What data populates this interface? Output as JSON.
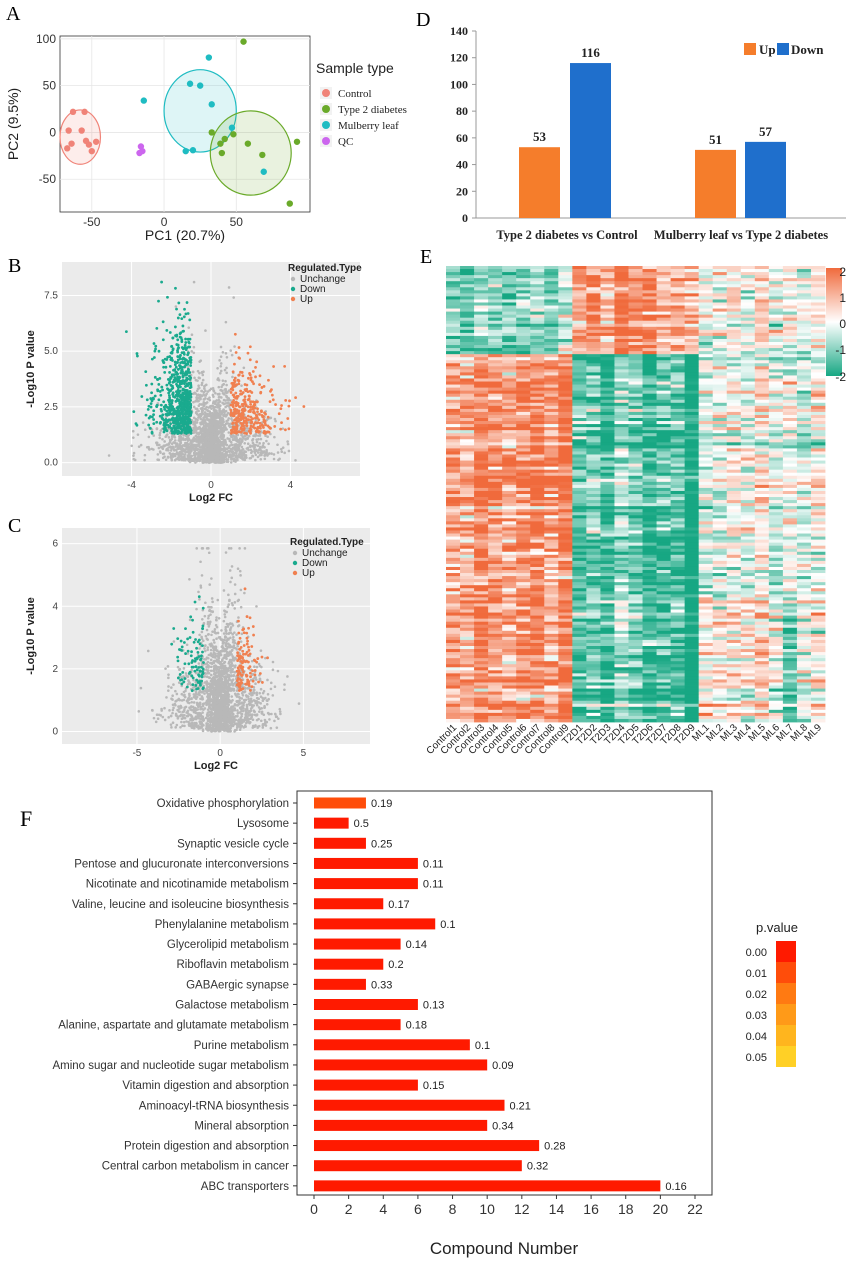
{
  "colors": {
    "control": "#f08378",
    "t2d": "#6aaa2a",
    "ml": "#1fbcc2",
    "qc": "#cc66ee",
    "up": "#f08050",
    "down": "#1aaa8e",
    "unchange": "#b8b8b8",
    "barUp": "#f57d2b",
    "barDown": "#1f6fcc",
    "heatHigh": "#f06a3c",
    "heatMid": "#ffffff",
    "heatLow": "#17a783"
  },
  "panels": {
    "A": "A",
    "B": "B",
    "C": "C",
    "D": "D",
    "E": "E",
    "F": "F"
  },
  "chart_data": [
    {
      "panel": "A",
      "type": "scatter",
      "title": "",
      "xlabel": "PC1 (20.7%)",
      "ylabel": "PC2 (9.5%)",
      "xlim": [
        -72,
        101
      ],
      "ylim": [
        -85,
        103
      ],
      "xticks": [
        "-50",
        "0",
        "50"
      ],
      "yticks": [
        "-50",
        "0",
        "50",
        "100"
      ],
      "legend_title": "Sample type",
      "legend": [
        "Control",
        "Type 2 diabetes",
        "Mulberry leaf",
        "QC"
      ],
      "series": [
        {
          "name": "Control",
          "points": [
            [
              -63,
              22
            ],
            [
              -55,
              22
            ],
            [
              -66,
              2
            ],
            [
              -57,
              2
            ],
            [
              -64,
              -12
            ],
            [
              -52,
              -13
            ],
            [
              -54,
              -9
            ],
            [
              -47,
              -10
            ],
            [
              -50,
              -20
            ],
            [
              -67,
              -17
            ]
          ]
        },
        {
          "name": "Type 2 diabetes",
          "points": [
            [
              55,
              97
            ],
            [
              92,
              -10
            ],
            [
              87,
              -76
            ],
            [
              33,
              0
            ],
            [
              48,
              -2
            ],
            [
              42,
              -7
            ],
            [
              39,
              -12
            ],
            [
              40,
              -22
            ],
            [
              68,
              -24
            ],
            [
              58,
              -12
            ]
          ]
        },
        {
          "name": "Mulberry leaf",
          "points": [
            [
              31,
              80
            ],
            [
              -14,
              34
            ],
            [
              18,
              52
            ],
            [
              25,
              50
            ],
            [
              33,
              30
            ],
            [
              47,
              5
            ],
            [
              15,
              -20
            ],
            [
              20,
              -19
            ],
            [
              69,
              -42
            ]
          ]
        },
        {
          "name": "QC",
          "points": [
            [
              -16,
              -15
            ],
            [
              -15,
              -20
            ],
            [
              -17,
              -22
            ]
          ]
        }
      ],
      "ellipses": [
        {
          "name": "Control",
          "cx": -58,
          "cy": -5,
          "rx": 14,
          "ry": 29
        },
        {
          "name": "Mulberry leaf",
          "cx": 25,
          "cy": 23,
          "rx": 25,
          "ry": 44
        },
        {
          "name": "Type 2 diabetes",
          "cx": 60,
          "cy": -22,
          "rx": 28,
          "ry": 45
        }
      ]
    },
    {
      "panel": "B",
      "type": "scatter",
      "subtype": "volcano",
      "xlabel": "Log2 FC",
      "ylabel": "-Log10 P value",
      "xlim": [
        -7.5,
        7.5
      ],
      "ylim": [
        -0.6,
        9
      ],
      "xticks": [
        "-4",
        "0",
        "4"
      ],
      "yticks": [
        "0.0",
        "2.5",
        "5.0",
        "7.5"
      ],
      "legend_title": "Regulated.Type",
      "legend": [
        "Unchange",
        "Down",
        "Up"
      ],
      "down_count": 116,
      "up_count": 53
    },
    {
      "panel": "C",
      "type": "scatter",
      "subtype": "volcano",
      "xlabel": "Log2 FC",
      "ylabel": "-Log10 P value",
      "xlim": [
        -9.5,
        9
      ],
      "ylim": [
        -0.4,
        6.5
      ],
      "xticks": [
        "-5",
        "0",
        "5"
      ],
      "yticks": [
        "0",
        "2",
        "4",
        "6"
      ],
      "legend_title": "Regulated.Type",
      "legend": [
        "Unchange",
        "Down",
        "Up"
      ],
      "down_count": 57,
      "up_count": 51
    },
    {
      "panel": "D",
      "type": "bar",
      "categories": [
        "Type 2 diabetes vs Control",
        "Mulberry leaf vs Type 2 diabetes"
      ],
      "series": [
        {
          "name": "Up",
          "values": [
            53,
            51
          ]
        },
        {
          "name": "Down",
          "values": [
            116,
            57
          ]
        }
      ],
      "ylim": [
        0,
        140
      ],
      "yticks": [
        "0",
        "20",
        "40",
        "60",
        "80",
        "100",
        "120",
        "140"
      ],
      "legend": [
        "Up",
        "Down"
      ]
    },
    {
      "panel": "E",
      "type": "heatmap",
      "columns": [
        "Control1",
        "Control2",
        "Control3",
        "Control4",
        "Control5",
        "Control6",
        "Control7",
        "Control8",
        "Control9",
        "T2D1",
        "T2D2",
        "T2D3",
        "T2D4",
        "T2D5",
        "T2D6",
        "T2D7",
        "T2D8",
        "T2D9",
        "ML1",
        "ML2",
        "ML3",
        "ML4",
        "ML5",
        "ML6",
        "ML7",
        "ML8",
        "ML9"
      ],
      "colorbar": [
        "2",
        "1",
        "0",
        "-1",
        "-2"
      ],
      "rows": 150
    },
    {
      "panel": "F",
      "type": "bar",
      "orientation": "horizontal",
      "xlabel": "Compound Number",
      "xlim": [
        0,
        22
      ],
      "xticks": [
        "0",
        "2",
        "4",
        "6",
        "8",
        "10",
        "12",
        "14",
        "16",
        "18",
        "20",
        "22"
      ],
      "categories": [
        "Oxidative phosphorylation",
        "Lysosome",
        "Synaptic vesicle cycle",
        "Pentose and glucuronate interconversions",
        "Nicotinate and nicotinamide metabolism",
        "Valine, leucine and isoleucine biosynthesis",
        "Phenylalanine metabolism",
        "Glycerolipid metabolism",
        "Riboflavin metabolism",
        "GABAergic synapse",
        "Galactose metabolism",
        "Alanine, aspartate and glutamate metabolism",
        "Purine metabolism",
        "Amino sugar and nucleotide sugar metabolism",
        "Vitamin digestion and absorption",
        "Aminoacyl-tRNA biosynthesis",
        "Mineral absorption",
        "Protein digestion and absorption",
        "Central carbon metabolism in cancer",
        "ABC transporters"
      ],
      "values": [
        3,
        2,
        3,
        6,
        6,
        4,
        7,
        5,
        4,
        3,
        6,
        5,
        9,
        10,
        6,
        11,
        10,
        13,
        12,
        20
      ],
      "labels": [
        "0.19",
        "0.5",
        "0.25",
        "0.11",
        "0.11",
        "0.17",
        "0.1",
        "0.14",
        "0.2",
        "0.33",
        "0.13",
        "0.18",
        "0.1",
        "0.09",
        "0.15",
        "0.21",
        "0.34",
        "0.28",
        "0.32",
        "0.16"
      ],
      "pvalues": [
        0.012,
        0.002,
        0.002,
        0.001,
        0.001,
        0.001,
        0.001,
        0.001,
        0.001,
        0.001,
        0.001,
        0.001,
        0.001,
        0.001,
        0.001,
        0.001,
        0.001,
        0.001,
        0.001,
        0.001
      ],
      "legend_title": "p.value",
      "legend": [
        "0.00",
        "0.01",
        "0.02",
        "0.03",
        "0.04",
        "0.05"
      ],
      "legend_colors": [
        "#ff1a00",
        "#ff4d0a",
        "#ff7a12",
        "#ff9a18",
        "#ffb51e",
        "#ffd026"
      ]
    }
  ]
}
